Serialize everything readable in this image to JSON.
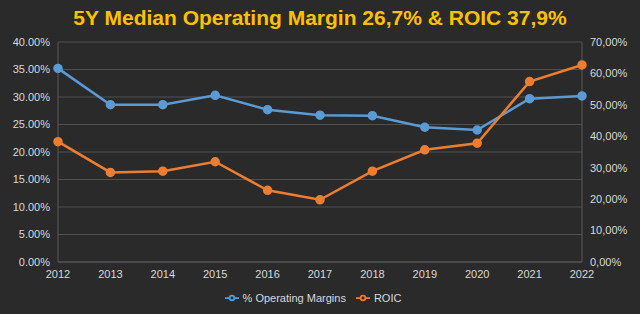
{
  "chart_data": {
    "type": "line",
    "title": "5Y Median Operating Margin 26,7% & ROIC 37,9%",
    "categories": [
      "2012",
      "2013",
      "2014",
      "2015",
      "2016",
      "2017",
      "2018",
      "2019",
      "2020",
      "2021",
      "2022"
    ],
    "series": [
      {
        "name": "% Operating Margins",
        "color": "#5b9bd5",
        "marker": "circle",
        "values": [
          35.2,
          28.6,
          28.6,
          30.3,
          27.7,
          26.7,
          26.6,
          24.5,
          24.0,
          29.7,
          30.2
        ]
      },
      {
        "name": "ROIC",
        "color": "#ed7d31",
        "marker": "circle",
        "axis": "y2",
        "values": [
          38.3,
          28.5,
          28.9,
          31.9,
          22.8,
          19.8,
          28.9,
          35.7,
          37.8,
          57.4,
          62.7
        ]
      }
    ],
    "ylim": [
      0,
      40
    ],
    "yticks": [
      {
        "value": 0,
        "label": "0.00%"
      },
      {
        "value": 5,
        "label": "5.00%"
      },
      {
        "value": 10,
        "label": "10.00%"
      },
      {
        "value": 15,
        "label": "15.00%"
      },
      {
        "value": 20,
        "label": "20.00%"
      },
      {
        "value": 25,
        "label": "25.00%"
      },
      {
        "value": 30,
        "label": "30.00%"
      },
      {
        "value": 35,
        "label": "35.00%"
      },
      {
        "value": 40,
        "label": "40.00%"
      }
    ],
    "y2lim": [
      0,
      70
    ],
    "y2ticks": [
      {
        "value": 0,
        "label": "0,00%"
      },
      {
        "value": 10,
        "label": "10,00%"
      },
      {
        "value": 20,
        "label": "20,00%"
      },
      {
        "value": 30,
        "label": "30,00%"
      },
      {
        "value": 40,
        "label": "40,00%"
      },
      {
        "value": 50,
        "label": "50,00%"
      },
      {
        "value": 60,
        "label": "60,00%"
      },
      {
        "value": 70,
        "label": "70,00%"
      }
    ],
    "grid": true,
    "legend": "bottom"
  }
}
